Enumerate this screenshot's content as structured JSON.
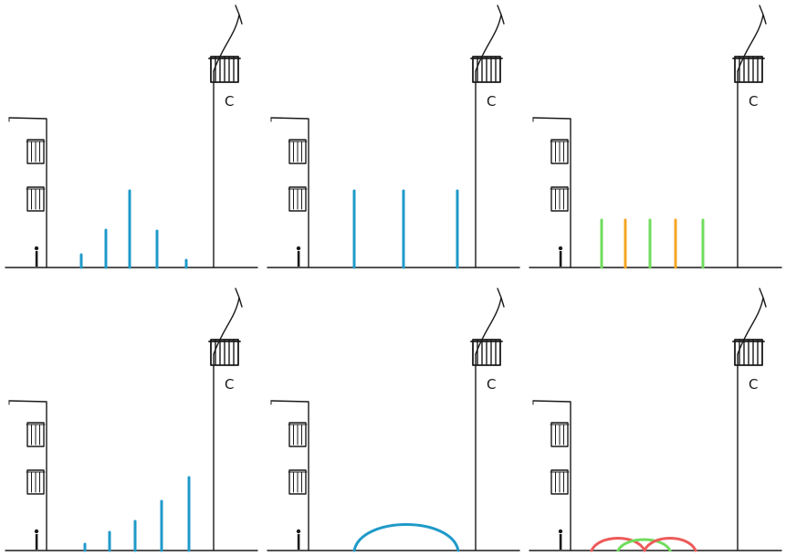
{
  "sign_letter": "C",
  "colors": {
    "ink": "#1a1a1a",
    "blue": "#1f9ac9",
    "green": "#6fdc5c",
    "orange": "#f5a623",
    "red": "#ee5a5a"
  },
  "panels": [
    {
      "id": "panel-1",
      "pattern": "vertical-lines-symmetric-heights"
    },
    {
      "id": "panel-2",
      "pattern": "vertical-lines-equal-heights-evenly-spaced"
    },
    {
      "id": "panel-3",
      "pattern": "vertical-lines-alternating-colors"
    },
    {
      "id": "panel-4",
      "pattern": "vertical-lines-increasing-heights"
    },
    {
      "id": "panel-5",
      "pattern": "single-arch"
    },
    {
      "id": "panel-6",
      "pattern": "overlapping-arches"
    }
  ]
}
